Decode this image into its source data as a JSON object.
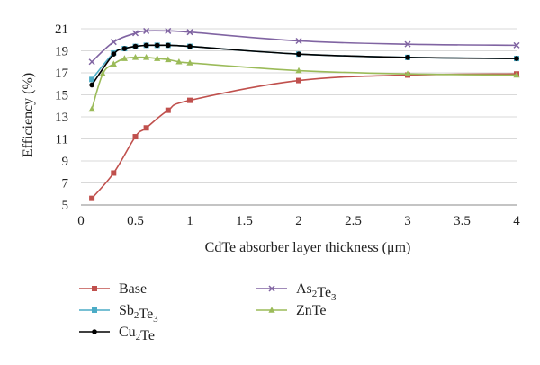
{
  "chart_data": {
    "type": "line",
    "xlabel": "CdTe absorber layer thickness (μm)",
    "ylabel": "Efficiency (%)",
    "xlim": [
      0,
      4
    ],
    "ylim": [
      5,
      21
    ],
    "x_ticks": [
      "0",
      "0.5",
      "1",
      "1.5",
      "2",
      "2.5",
      "3",
      "3.5",
      "4"
    ],
    "y_ticks": [
      "5",
      "7",
      "9",
      "11",
      "13",
      "15",
      "17",
      "19",
      "21"
    ],
    "x_tick_values": [
      0,
      0.5,
      1,
      1.5,
      2,
      2.5,
      3,
      3.5,
      4
    ],
    "y_tick_values": [
      5,
      7,
      9,
      11,
      13,
      15,
      17,
      19,
      21
    ],
    "grid": "horizontal",
    "legend_placement": "bottom",
    "series": [
      {
        "name": "Base",
        "color": "#c0504d",
        "marker": "square",
        "points": [
          [
            0.1,
            5.6
          ],
          [
            0.3,
            7.9
          ],
          [
            0.5,
            11.2
          ],
          [
            0.6,
            12.0
          ],
          [
            0.8,
            13.6
          ],
          [
            1.0,
            14.5
          ],
          [
            2.0,
            16.3
          ],
          [
            3.0,
            16.8
          ],
          [
            4.0,
            16.9
          ]
        ]
      },
      {
        "name": "Sb2Te3",
        "color": "#4bacc6",
        "marker": "square",
        "points": [
          [
            0.1,
            16.4
          ],
          [
            0.3,
            18.8
          ],
          [
            0.4,
            19.2
          ],
          [
            0.5,
            19.4
          ],
          [
            0.6,
            19.5
          ],
          [
            0.7,
            19.5
          ],
          [
            0.8,
            19.5
          ],
          [
            1.0,
            19.4
          ],
          [
            2.0,
            18.7
          ],
          [
            3.0,
            18.4
          ],
          [
            4.0,
            18.3
          ]
        ]
      },
      {
        "name": "Cu2Te",
        "color": "#000000",
        "marker": "circle",
        "points": [
          [
            0.1,
            15.9
          ],
          [
            0.3,
            18.7
          ],
          [
            0.4,
            19.2
          ],
          [
            0.5,
            19.4
          ],
          [
            0.6,
            19.5
          ],
          [
            0.7,
            19.5
          ],
          [
            0.8,
            19.5
          ],
          [
            1.0,
            19.4
          ],
          [
            2.0,
            18.7
          ],
          [
            3.0,
            18.4
          ],
          [
            4.0,
            18.3
          ]
        ]
      },
      {
        "name": "As2Te3",
        "color": "#8064a2",
        "marker": "x",
        "points": [
          [
            0.1,
            18.0
          ],
          [
            0.3,
            19.8
          ],
          [
            0.5,
            20.6
          ],
          [
            0.6,
            20.8
          ],
          [
            0.8,
            20.8
          ],
          [
            1.0,
            20.7
          ],
          [
            2.0,
            19.9
          ],
          [
            3.0,
            19.6
          ],
          [
            4.0,
            19.5
          ]
        ]
      },
      {
        "name": "ZnTe",
        "color": "#9bbb59",
        "marker": "triangle",
        "points": [
          [
            0.1,
            13.7
          ],
          [
            0.2,
            16.9
          ],
          [
            0.3,
            17.8
          ],
          [
            0.4,
            18.3
          ],
          [
            0.5,
            18.4
          ],
          [
            0.6,
            18.4
          ],
          [
            0.7,
            18.3
          ],
          [
            0.8,
            18.2
          ],
          [
            0.9,
            18.0
          ],
          [
            1.0,
            17.9
          ],
          [
            2.0,
            17.2
          ],
          [
            3.0,
            16.9
          ],
          [
            4.0,
            16.8
          ]
        ]
      }
    ],
    "legend": [
      {
        "series": 0,
        "label": "Base"
      },
      {
        "series": 3,
        "label_base": "As",
        "sub1": "2",
        "mid": "Te",
        "sub2": "3"
      },
      {
        "series": 1,
        "label_base": "Sb",
        "sub1": "2",
        "mid": "Te",
        "sub2": "3"
      },
      {
        "series": 4,
        "label": "ZnTe"
      },
      {
        "series": 2,
        "label_base": "Cu",
        "sub1": "2",
        "mid": "Te",
        "sub2": ""
      }
    ]
  }
}
